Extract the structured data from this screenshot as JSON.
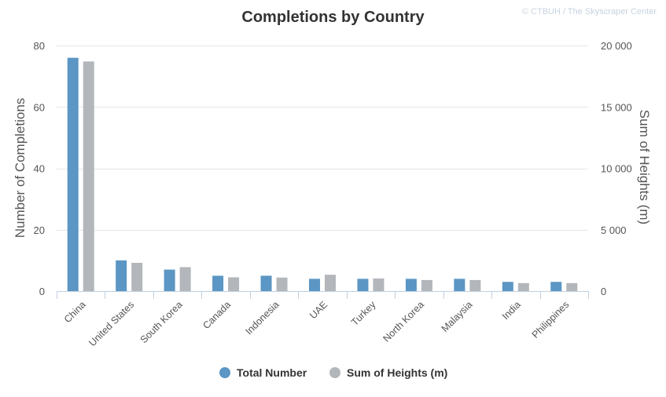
{
  "credit": "© CTBUH / The Skyscraper Center",
  "chart_data": {
    "type": "bar",
    "title": "Completions by Country",
    "categories": [
      "China",
      "United States",
      "South Korea",
      "Canada",
      "Indonesia",
      "UAE",
      "Turkey",
      "North Korea",
      "Malaysia",
      "India",
      "Philippines"
    ],
    "series": [
      {
        "name": "Total Number",
        "axis": "left",
        "color": "#5b96c4",
        "values": [
          76,
          10,
          7,
          5,
          5,
          4,
          4,
          4,
          4,
          3,
          3
        ]
      },
      {
        "name": "Sum of Heights (m)",
        "axis": "right",
        "color": "#b3b6ba",
        "values": [
          18700,
          2300,
          1950,
          1120,
          1100,
          1330,
          1030,
          900,
          900,
          650,
          650
        ]
      }
    ],
    "y_left": {
      "label": "Number of Completions",
      "ylim": [
        0,
        80
      ],
      "ticks": [
        0,
        20,
        40,
        60,
        80
      ],
      "tick_labels": [
        "0",
        "20",
        "40",
        "60",
        "80"
      ]
    },
    "y_right": {
      "label": "Sum of Heights (m)",
      "ylim": [
        0,
        20000
      ],
      "ticks": [
        0,
        5000,
        10000,
        15000,
        20000
      ],
      "tick_labels": [
        "0",
        "5 000",
        "10 000",
        "15 000",
        "20 000"
      ]
    },
    "grid": true,
    "legend_position": "bottom-center"
  }
}
